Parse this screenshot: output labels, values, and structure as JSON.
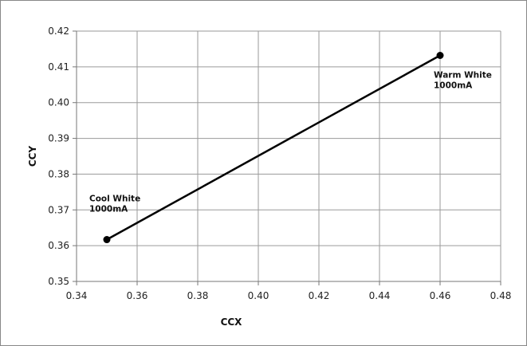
{
  "chart_data": {
    "type": "scatter",
    "title": "",
    "xlabel": "CCX",
    "ylabel": "CCY",
    "xlim": [
      0.34,
      0.48
    ],
    "ylim": [
      0.35,
      0.42
    ],
    "x_ticks": [
      "0.34",
      "0.36",
      "0.38",
      "0.40",
      "0.42",
      "0.44",
      "0.46",
      "0.48"
    ],
    "y_ticks": [
      "0.35",
      "0.36",
      "0.37",
      "0.38",
      "0.39",
      "0.40",
      "0.41",
      "0.42"
    ],
    "grid": true,
    "legend": "none",
    "series": [
      {
        "x": [
          0.35,
          0.46
        ],
        "y": [
          0.3617,
          0.4132
        ],
        "color": "#000000",
        "connected": true
      }
    ],
    "annotations": [
      {
        "lines": [
          "Cool White",
          "1000mA"
        ]
      },
      {
        "lines": [
          "Warm White",
          "1000mA"
        ]
      }
    ]
  }
}
